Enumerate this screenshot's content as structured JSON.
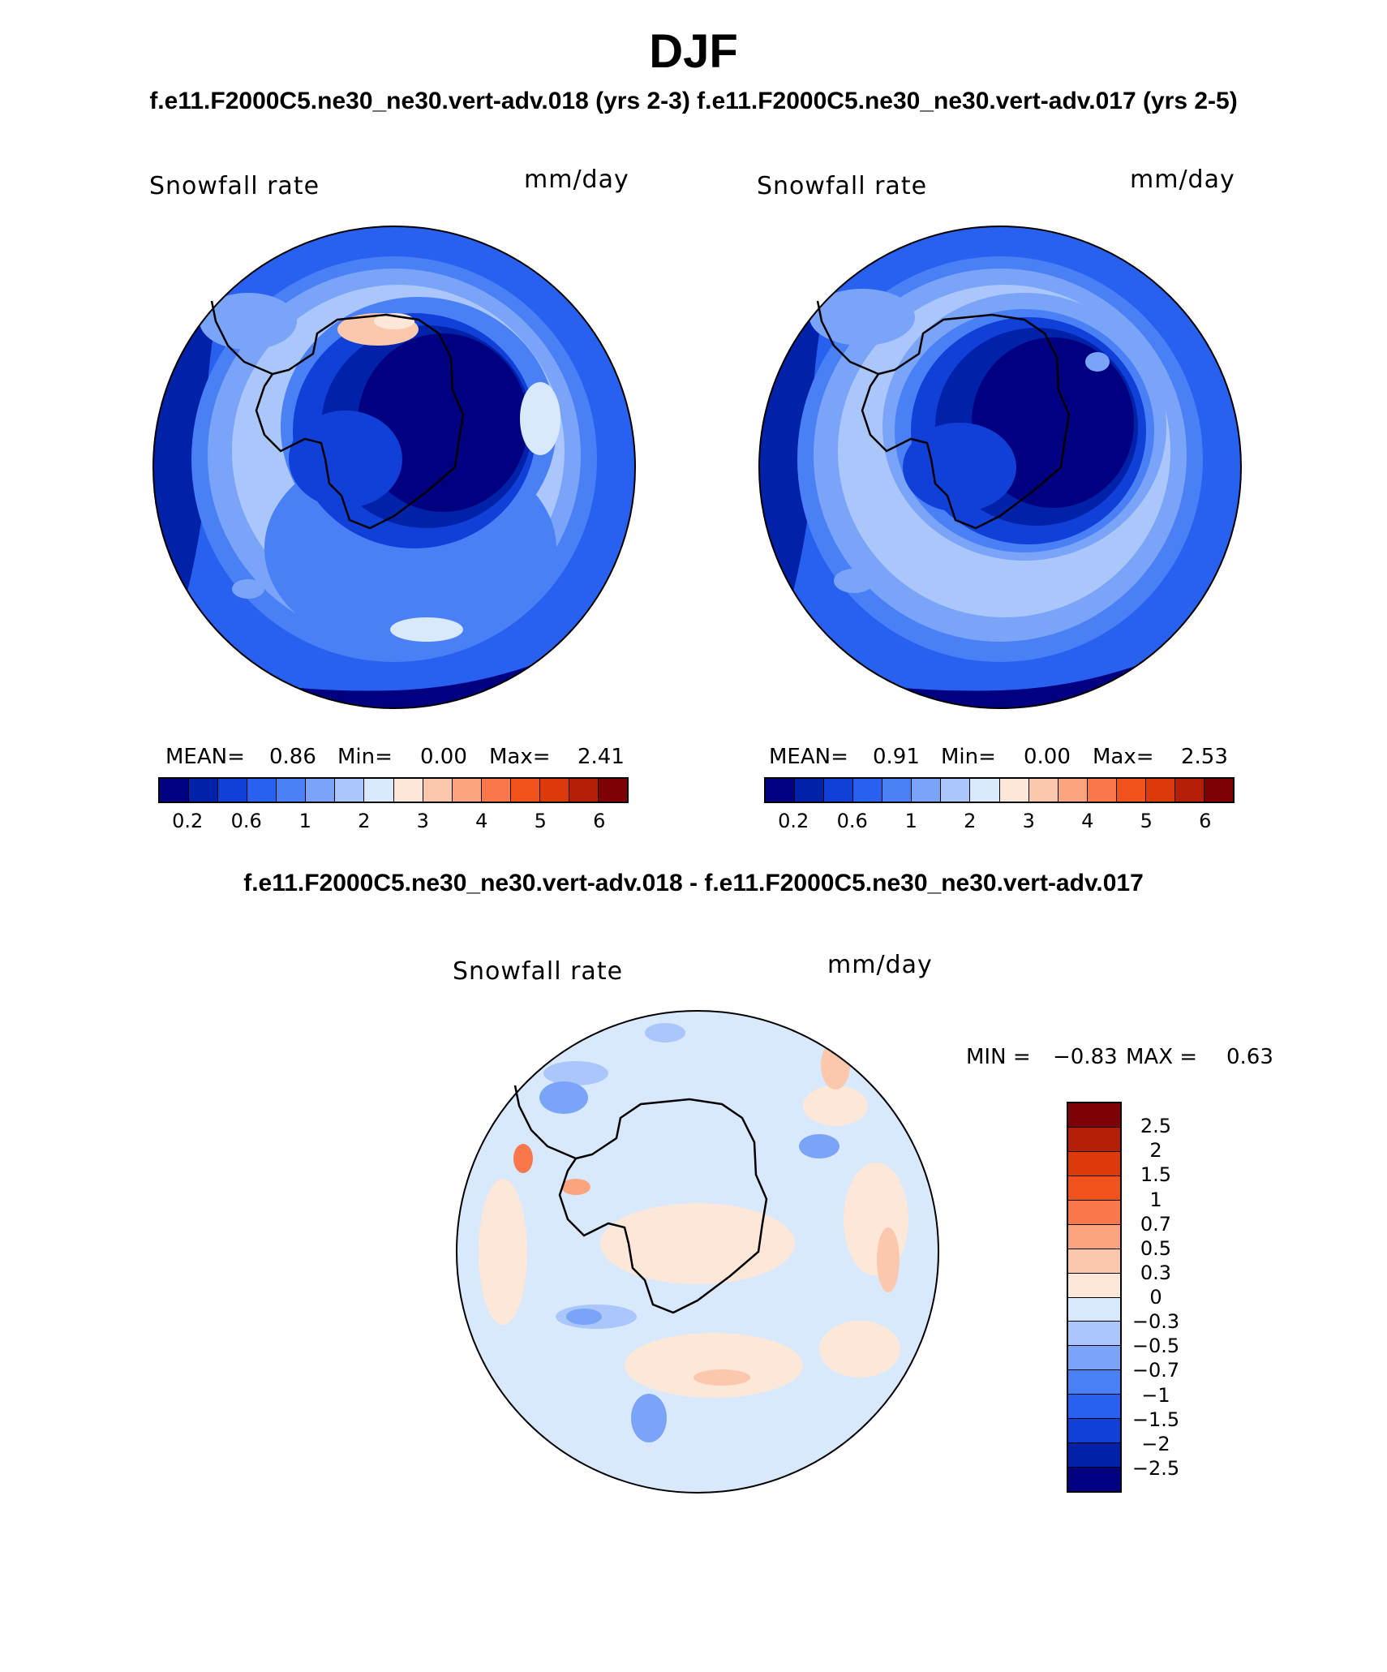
{
  "figure": {
    "title": "DJF",
    "subtitle": "f.e11.F2000C5.ne30_ne30.vert-adv.018 (yrs 2-3)  f.e11.F2000C5.ne30_ne30.vert-adv.017 (yrs 2-5)",
    "diff_title": "f.e11.F2000C5.ne30_ne30.vert-adv.018 - f.e11.F2000C5.ne30_ne30.vert-adv.017"
  },
  "panels": [
    {
      "left_label": "Snowfall rate",
      "right_label": "mm/day",
      "stats": {
        "mean_label": "MEAN=",
        "mean": "0.86",
        "min_label": "Min=",
        "min": "0.00",
        "max_label": "Max=",
        "max": "2.41"
      }
    },
    {
      "left_label": "Snowfall rate",
      "right_label": "mm/day",
      "stats": {
        "mean_label": "MEAN=",
        "mean": "0.91",
        "min_label": "Min=",
        "min": "0.00",
        "max_label": "Max=",
        "max": "2.53"
      }
    }
  ],
  "diff_panel": {
    "left_label": "Snowfall rate",
    "right_label": "mm/day",
    "min_label": "MIN =",
    "min": "−0.83",
    "max_label": "MAX =",
    "max": "0.63"
  },
  "colorbar_main": {
    "tick_labels": [
      "0.2",
      "0.6",
      "1",
      "2",
      "3",
      "4",
      "5",
      "6"
    ],
    "colors": [
      "#000080",
      "#0022a8",
      "#1040d8",
      "#2860f0",
      "#4a80f5",
      "#7aa4f7",
      "#aac6fa",
      "#d8e8fd",
      "#fde7d8",
      "#fcc8ad",
      "#fba47e",
      "#f9774a",
      "#f2521e",
      "#dd3a0b",
      "#b51e07",
      "#7e0205"
    ]
  },
  "colorbar_diff": {
    "tick_labels": [
      "2.5",
      "2",
      "1.5",
      "1",
      "0.7",
      "0.5",
      "0.3",
      "0",
      "−0.3",
      "−0.5",
      "−0.7",
      "−1",
      "−1.5",
      "−2",
      "−2.5"
    ],
    "colors": [
      "#7e0205",
      "#b51e07",
      "#dd3a0b",
      "#f2521e",
      "#f9774a",
      "#fba47e",
      "#fcc8ad",
      "#fde7d8",
      "#d8e8fd",
      "#aac6fa",
      "#7aa4f7",
      "#4a80f5",
      "#2860f0",
      "#1040d8",
      "#0022a8",
      "#000080"
    ]
  }
}
